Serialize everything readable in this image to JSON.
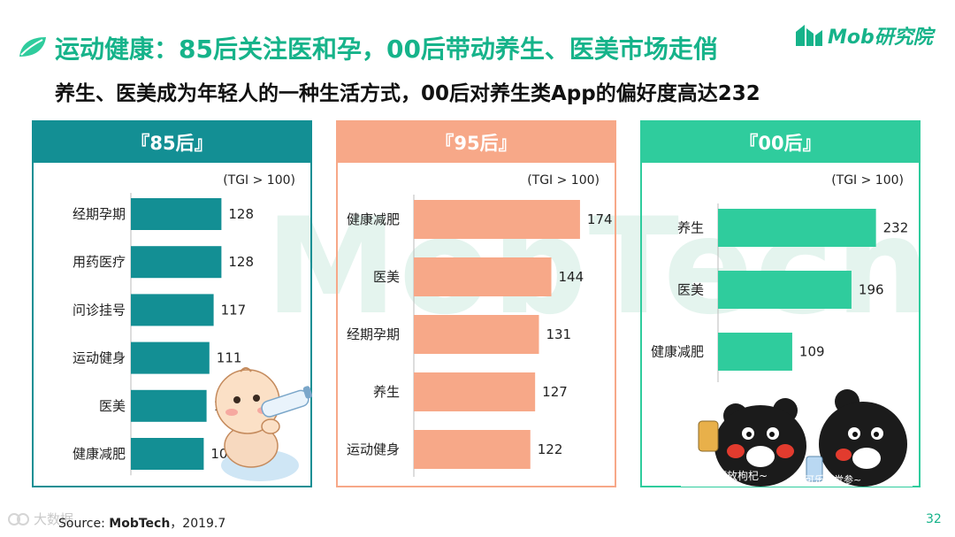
{
  "header": {
    "title": "运动健康：85后关注医和孕，00后带动养生、医美市场走俏",
    "subtitle": "养生、医美成为年轻人的一种生活方式，00后对养生类App的偏好度高达232"
  },
  "logo": {
    "text": "Mob研究院"
  },
  "watermark": "MobTech",
  "colors": {
    "p85": "#138f94",
    "p95": "#f7a888",
    "p00": "#2fcc9d",
    "title": "#16b38a"
  },
  "chart_data": [
    {
      "type": "bar",
      "orientation": "horizontal",
      "title": "『85后』",
      "unit_note": "(TGI > 100)",
      "categories": [
        "经期孕期",
        "用药医疗",
        "问诊挂号",
        "运动健身",
        "医美",
        "健康减肥"
      ],
      "values": [
        128,
        128,
        117,
        111,
        107,
        103
      ],
      "color": "#138f94"
    },
    {
      "type": "bar",
      "orientation": "horizontal",
      "title": "『95后』",
      "unit_note": "(TGI > 100)",
      "categories": [
        "健康减肥",
        "医美",
        "经期孕期",
        "养生",
        "运动健身"
      ],
      "values": [
        174,
        144,
        131,
        127,
        122
      ],
      "color": "#f7a888"
    },
    {
      "type": "bar",
      "orientation": "horizontal",
      "title": "『00后』",
      "unit_note": "(TGI > 100)",
      "categories": [
        "养生",
        "医美",
        "健康减肥"
      ],
      "values": [
        232,
        196,
        109
      ],
      "color": "#2fcc9d"
    }
  ],
  "stickers": {
    "bear_caption_1": "啤酒放枸杞~",
    "bear_caption_2": "可乐加党参~"
  },
  "footer": {
    "source_label": "Source: ",
    "source_brand": "MobTech",
    "source_date": "，2019.7",
    "page": "32",
    "corner_mark": "大数据"
  }
}
